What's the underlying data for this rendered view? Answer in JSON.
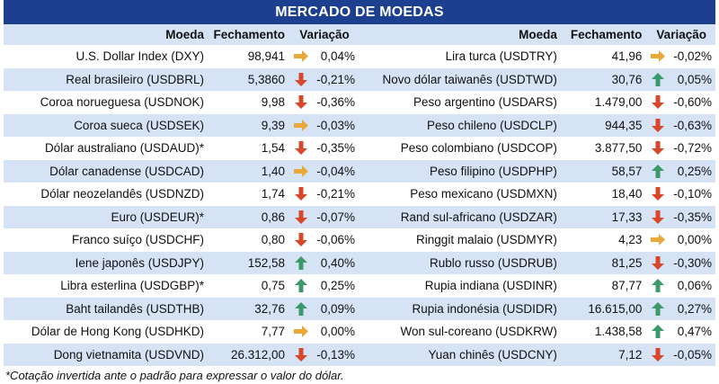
{
  "title": "MERCADO DE MOEDAS",
  "headers": {
    "name": "Moeda",
    "close": "Fechamento",
    "change": "Variação"
  },
  "colors": {
    "up": "#3c9a6a",
    "down": "#d9472b",
    "flat": "#e8a83a",
    "header_bg": "#1c3f8f",
    "band": "#d6e3f5"
  },
  "left": [
    {
      "name": "U.S. Dollar Index (DXY)",
      "close": "98,941",
      "trend": "flat",
      "change": "0,04%"
    },
    {
      "name": "Real brasileiro (USDBRL)",
      "close": "5,3860",
      "trend": "down",
      "change": "-0,21%"
    },
    {
      "name": "Coroa norueguesa (USDNOK)",
      "close": "9,98",
      "trend": "down",
      "change": "-0,36%"
    },
    {
      "name": "Coroa sueca (USDSEK)",
      "close": "9,39",
      "trend": "flat",
      "change": "-0,03%"
    },
    {
      "name": "Dólar australiano (USDAUD)*",
      "close": "1,54",
      "trend": "down",
      "change": "-0,35%"
    },
    {
      "name": "Dólar canadense (USDCAD)",
      "close": "1,40",
      "trend": "flat",
      "change": "-0,04%"
    },
    {
      "name": "Dólar neozelandês (USDNZD)",
      "close": "1,74",
      "trend": "down",
      "change": "-0,21%"
    },
    {
      "name": "Euro (USDEUR)*",
      "close": "0,86",
      "trend": "down",
      "change": "-0,07%"
    },
    {
      "name": "Franco suíço (USDCHF)",
      "close": "0,80",
      "trend": "down",
      "change": "-0,06%"
    },
    {
      "name": "Iene japonês (USDJPY)",
      "close": "152,58",
      "trend": "up",
      "change": "0,40%"
    },
    {
      "name": "Libra esterlina (USDGBP)*",
      "close": "0,75",
      "trend": "up",
      "change": "0,25%"
    },
    {
      "name": "Baht tailandês (USDTHB)",
      "close": "32,76",
      "trend": "up",
      "change": "0,09%"
    },
    {
      "name": "Dólar de Hong Kong (USDHKD)",
      "close": "7,77",
      "trend": "flat",
      "change": "0,00%"
    },
    {
      "name": "Dong vietnamita (USDVND)",
      "close": "26.312,00",
      "trend": "down",
      "change": "-0,13%"
    }
  ],
  "right": [
    {
      "name": "Lira turca (USDTRY)",
      "close": "41,96",
      "trend": "flat",
      "change": "-0,02%"
    },
    {
      "name": "Novo dólar taiwanês (USDTWD)",
      "close": "30,76",
      "trend": "up",
      "change": "0,05%"
    },
    {
      "name": "Peso argentino (USDARS)",
      "close": "1.479,00",
      "trend": "down",
      "change": "-0,60%"
    },
    {
      "name": "Peso chileno (USDCLP)",
      "close": "944,35",
      "trend": "down",
      "change": "-0,63%"
    },
    {
      "name": "Peso colombiano (USDCOP)",
      "close": "3.877,50",
      "trend": "down",
      "change": "-0,72%"
    },
    {
      "name": "Peso filipino (USDPHP)",
      "close": "58,57",
      "trend": "up",
      "change": "0,25%"
    },
    {
      "name": "Peso mexicano (USDMXN)",
      "close": "18,40",
      "trend": "down",
      "change": "-0,10%"
    },
    {
      "name": "Rand sul-africano (USDZAR)",
      "close": "17,33",
      "trend": "down",
      "change": "-0,35%"
    },
    {
      "name": "Ringgit malaio (USDMYR)",
      "close": "4,23",
      "trend": "flat",
      "change": "0,00%"
    },
    {
      "name": "Rublo russo (USDRUB)",
      "close": "81,25",
      "trend": "down",
      "change": "-0,30%"
    },
    {
      "name": "Rupia indiana (USDINR)",
      "close": "87,77",
      "trend": "up",
      "change": "0,06%"
    },
    {
      "name": "Rupia indonésia (USDIDR)",
      "close": "16.615,00",
      "trend": "up",
      "change": "0,27%"
    },
    {
      "name": "Won sul-coreano (USDKRW)",
      "close": "1.438,58",
      "trend": "up",
      "change": "0,47%"
    },
    {
      "name": "Yuan chinês (USDCNY)",
      "close": "7,12",
      "trend": "down",
      "change": "-0,05%"
    }
  ],
  "footnote": "*Cotação invertida ante o padrão para expressar o valor do dólar."
}
